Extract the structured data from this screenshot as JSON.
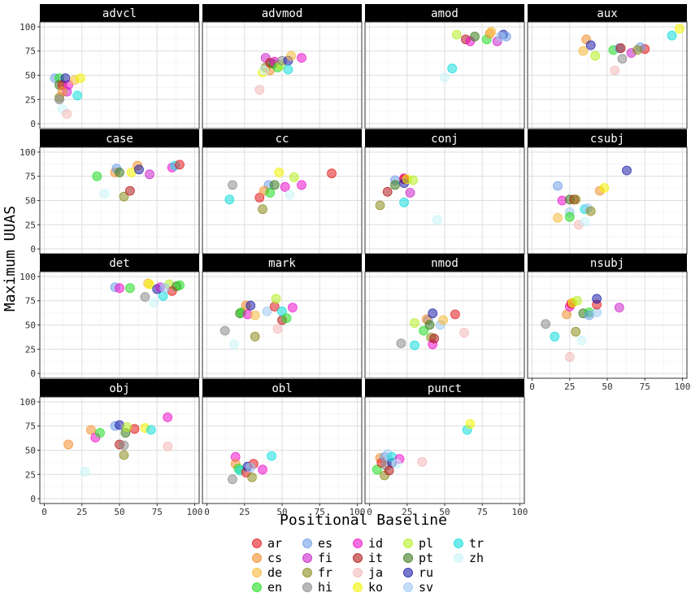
{
  "chart_data": {
    "type": "scatter",
    "xlabel": "Positional Baseline",
    "ylabel": "Maximum UUAS",
    "xlim": [
      -3,
      103
    ],
    "ylim": [
      -5,
      105
    ],
    "x_ticks": [
      0,
      25,
      50,
      75,
      100
    ],
    "y_ticks": [
      0,
      25,
      50,
      75,
      100
    ],
    "grid": true,
    "legend_position": "bottom",
    "languages": [
      {
        "code": "ar",
        "color": "#e41a1c"
      },
      {
        "code": "cs",
        "color": "#f28e2b"
      },
      {
        "code": "de",
        "color": "#f6b93b"
      },
      {
        "code": "en",
        "color": "#22dd22"
      },
      {
        "code": "es",
        "color": "#6f9fe8"
      },
      {
        "code": "fi",
        "color": "#cc22cc"
      },
      {
        "code": "fr",
        "color": "#8c8c1e"
      },
      {
        "code": "hi",
        "color": "#8a8a8a"
      },
      {
        "code": "id",
        "color": "#ee11cc"
      },
      {
        "code": "it",
        "color": "#b01818"
      },
      {
        "code": "ja",
        "color": "#f4b8b8"
      },
      {
        "code": "ko",
        "color": "#f2f200"
      },
      {
        "code": "pl",
        "color": "#b5ee22"
      },
      {
        "code": "pt",
        "color": "#3a7a1a"
      },
      {
        "code": "ru",
        "color": "#1e1eaa"
      },
      {
        "code": "sv",
        "color": "#9ec8f2"
      },
      {
        "code": "tr",
        "color": "#11dddd"
      },
      {
        "code": "zh",
        "color": "#c8f4f8"
      }
    ],
    "panels": [
      {
        "name": "advcl",
        "points": [
          [
            "es",
            7,
            47
          ],
          [
            "fr",
            10,
            27
          ],
          [
            "en",
            10,
            47
          ],
          [
            "pt",
            10,
            40
          ],
          [
            "ar",
            12,
            40
          ],
          [
            "id",
            16,
            40
          ],
          [
            "fi",
            15,
            33
          ],
          [
            "cs",
            12,
            33
          ],
          [
            "ru",
            14,
            47
          ],
          [
            "de",
            20,
            45
          ],
          [
            "ko",
            24,
            47
          ],
          [
            "tr",
            22,
            29
          ],
          [
            "zh",
            12,
            15
          ],
          [
            "ja",
            15,
            10
          ],
          [
            "hi",
            10,
            25
          ]
        ]
      },
      {
        "name": "advmod",
        "points": [
          [
            "ja",
            35,
            35
          ],
          [
            "ko",
            37,
            53
          ],
          [
            "fr",
            39,
            58
          ],
          [
            "fi",
            39,
            68
          ],
          [
            "cs",
            42,
            55
          ],
          [
            "it",
            42,
            63
          ],
          [
            "pt",
            44,
            62
          ],
          [
            "id",
            45,
            64
          ],
          [
            "en",
            47,
            58
          ],
          [
            "pl",
            49,
            60
          ],
          [
            "hi",
            50,
            65
          ],
          [
            "ru",
            54,
            65
          ],
          [
            "tr",
            54,
            56
          ],
          [
            "de",
            56,
            70
          ],
          [
            "id",
            63,
            68
          ],
          [
            "zh",
            38,
            55
          ]
        ]
      },
      {
        "name": "amod",
        "points": [
          [
            "zh",
            50,
            48
          ],
          [
            "tr",
            55,
            57
          ],
          [
            "pl",
            58,
            92
          ],
          [
            "it",
            64,
            87
          ],
          [
            "id",
            67,
            85
          ],
          [
            "pt",
            70,
            90
          ],
          [
            "en",
            78,
            87
          ],
          [
            "cs",
            80,
            93
          ],
          [
            "de",
            81,
            95
          ],
          [
            "fi",
            85,
            85
          ],
          [
            "ru",
            89,
            92
          ],
          [
            "es",
            91,
            90
          ],
          [
            "sv",
            87,
            90
          ]
        ]
      },
      {
        "name": "aux",
        "points": [
          [
            "ja",
            55,
            55
          ],
          [
            "cs",
            36,
            87
          ],
          [
            "de",
            34,
            75
          ],
          [
            "ru",
            39,
            81
          ],
          [
            "pl",
            42,
            70
          ],
          [
            "en",
            54,
            76
          ],
          [
            "es",
            58,
            78
          ],
          [
            "hi",
            60,
            67
          ],
          [
            "it",
            59,
            78
          ],
          [
            "fi",
            66,
            73
          ],
          [
            "ar",
            75,
            77
          ],
          [
            "es",
            72,
            79
          ],
          [
            "fr",
            70,
            76
          ],
          [
            "tr",
            93,
            91
          ],
          [
            "ko",
            98,
            98
          ]
        ]
      },
      {
        "name": "case",
        "points": [
          [
            "en",
            35,
            75
          ],
          [
            "zh",
            40,
            57
          ],
          [
            "cs",
            47,
            79
          ],
          [
            "es",
            48,
            83
          ],
          [
            "pt",
            50,
            79
          ],
          [
            "fr",
            53,
            54
          ],
          [
            "it",
            57,
            60
          ],
          [
            "ko",
            58,
            79
          ],
          [
            "cs",
            62,
            86
          ],
          [
            "ru",
            63,
            82
          ],
          [
            "fi",
            70,
            77
          ],
          [
            "id",
            85,
            84
          ],
          [
            "tr",
            87,
            86
          ],
          [
            "ar",
            90,
            87
          ]
        ]
      },
      {
        "name": "cc",
        "points": [
          [
            "tr",
            15,
            51
          ],
          [
            "hi",
            17,
            66
          ],
          [
            "ar",
            35,
            53
          ],
          [
            "fr",
            37,
            41
          ],
          [
            "es",
            41,
            66
          ],
          [
            "cs",
            38,
            60
          ],
          [
            "en",
            42,
            58
          ],
          [
            "pt",
            45,
            66
          ],
          [
            "ko",
            48,
            79
          ],
          [
            "id",
            52,
            64
          ],
          [
            "zh",
            55,
            56
          ],
          [
            "pl",
            58,
            74
          ],
          [
            "id",
            63,
            66
          ],
          [
            "ar",
            83,
            78
          ]
        ]
      },
      {
        "name": "conj",
        "points": [
          [
            "fr",
            7,
            45
          ],
          [
            "it",
            12,
            59
          ],
          [
            "es",
            17,
            71
          ],
          [
            "pt",
            17,
            66
          ],
          [
            "id",
            23,
            73
          ],
          [
            "ar",
            23,
            72
          ],
          [
            "ru",
            23,
            68
          ],
          [
            "ko",
            25,
            72
          ],
          [
            "tr",
            23,
            48
          ],
          [
            "fi",
            27,
            58
          ],
          [
            "pl",
            29,
            71
          ],
          [
            "zh",
            45,
            30
          ]
        ]
      },
      {
        "name": "csubj",
        "points": [
          [
            "sv",
            25,
            38
          ],
          [
            "es",
            17,
            65
          ],
          [
            "de",
            17,
            32
          ],
          [
            "id",
            20,
            50
          ],
          [
            "en",
            25,
            33
          ],
          [
            "pt",
            25,
            51
          ],
          [
            "it",
            28,
            51
          ],
          [
            "fr",
            29,
            51
          ],
          [
            "ja",
            31,
            25
          ],
          [
            "zh",
            35,
            28
          ],
          [
            "tr",
            35,
            41
          ],
          [
            "sv",
            37,
            42
          ],
          [
            "fr",
            39,
            39
          ],
          [
            "cs",
            45,
            60
          ],
          [
            "ko",
            48,
            63
          ],
          [
            "ru",
            63,
            81
          ]
        ]
      },
      {
        "name": "det",
        "points": [
          [
            "es",
            47,
            89
          ],
          [
            "id",
            50,
            88
          ],
          [
            "en",
            57,
            88
          ],
          [
            "hi",
            67,
            79
          ],
          [
            "de",
            69,
            93
          ],
          [
            "ko",
            70,
            92
          ],
          [
            "tr",
            79,
            80
          ],
          [
            "zh",
            73,
            73
          ],
          [
            "ru",
            75,
            87
          ],
          [
            "fi",
            77,
            89
          ],
          [
            "pl",
            83,
            92
          ],
          [
            "ar",
            85,
            85
          ],
          [
            "pt",
            88,
            90
          ],
          [
            "en",
            90,
            91
          ],
          [
            "sv",
            80,
            88
          ]
        ]
      },
      {
        "name": "mark",
        "points": [
          [
            "hi",
            12,
            44
          ],
          [
            "zh",
            18,
            30
          ],
          [
            "pt",
            22,
            62
          ],
          [
            "en",
            23,
            63
          ],
          [
            "cs",
            26,
            70
          ],
          [
            "id",
            27,
            61
          ],
          [
            "ru",
            29,
            70
          ],
          [
            "de",
            32,
            60
          ],
          [
            "fr",
            32,
            38
          ],
          [
            "sv",
            40,
            64
          ],
          [
            "ar",
            45,
            69
          ],
          [
            "pl",
            46,
            77
          ],
          [
            "ja",
            47,
            46
          ],
          [
            "it",
            50,
            55
          ],
          [
            "tr",
            50,
            64
          ],
          [
            "en",
            53,
            57
          ],
          [
            "id",
            57,
            68
          ]
        ]
      },
      {
        "name": "nmod",
        "points": [
          [
            "hi",
            21,
            31
          ],
          [
            "tr",
            30,
            29
          ],
          [
            "pl",
            30,
            52
          ],
          [
            "en",
            36,
            44
          ],
          [
            "es",
            39,
            55
          ],
          [
            "cs",
            38,
            56
          ],
          [
            "pt",
            40,
            50
          ],
          [
            "fr",
            41,
            37
          ],
          [
            "id",
            42,
            30
          ],
          [
            "it",
            43,
            36
          ],
          [
            "ru",
            42,
            62
          ],
          [
            "sv",
            47,
            50
          ],
          [
            "de",
            49,
            55
          ],
          [
            "ar",
            57,
            61
          ],
          [
            "ja",
            63,
            42
          ]
        ]
      },
      {
        "name": "nsubj",
        "points": [
          [
            "hi",
            9,
            51
          ],
          [
            "tr",
            15,
            38
          ],
          [
            "ja",
            25,
            17
          ],
          [
            "cs",
            23,
            61
          ],
          [
            "id",
            25,
            69
          ],
          [
            "ar",
            26,
            72
          ],
          [
            "ko",
            27,
            73
          ],
          [
            "pl",
            30,
            75
          ],
          [
            "fr",
            29,
            43
          ],
          [
            "pt",
            34,
            62
          ],
          [
            "en",
            38,
            63
          ],
          [
            "zh",
            33,
            34
          ],
          [
            "es",
            38,
            60
          ],
          [
            "sv",
            43,
            63
          ],
          [
            "ar",
            43,
            71
          ],
          [
            "ru",
            43,
            77
          ],
          [
            "fi",
            58,
            68
          ]
        ]
      },
      {
        "name": "obj",
        "points": [
          [
            "cs",
            16,
            56
          ],
          [
            "zh",
            27,
            28
          ],
          [
            "cs",
            31,
            71
          ],
          [
            "id",
            34,
            63
          ],
          [
            "en",
            37,
            68
          ],
          [
            "es",
            47,
            75
          ],
          [
            "ru",
            50,
            76
          ],
          [
            "it",
            50,
            56
          ],
          [
            "hi",
            53,
            55
          ],
          [
            "ar",
            60,
            72
          ],
          [
            "fr",
            53,
            45
          ],
          [
            "pt",
            54,
            68
          ],
          [
            "pl",
            55,
            74
          ],
          [
            "ko",
            67,
            73
          ],
          [
            "tr",
            71,
            71
          ],
          [
            "id",
            82,
            84
          ],
          [
            "ja",
            82,
            54
          ]
        ]
      },
      {
        "name": "obl",
        "points": [
          [
            "hi",
            17,
            20
          ],
          [
            "id",
            19,
            43
          ],
          [
            "cs",
            19,
            36
          ],
          [
            "en",
            21,
            31
          ],
          [
            "tr",
            22,
            29
          ],
          [
            "ar",
            26,
            27
          ],
          [
            "ru",
            27,
            33
          ],
          [
            "fr",
            30,
            22
          ],
          [
            "ar",
            31,
            36
          ],
          [
            "sv",
            29,
            32
          ],
          [
            "id",
            37,
            30
          ],
          [
            "tr",
            43,
            44
          ]
        ]
      },
      {
        "name": "punct",
        "points": [
          [
            "en",
            5,
            30
          ],
          [
            "cs",
            7,
            42
          ],
          [
            "ar",
            8,
            37
          ],
          [
            "es",
            10,
            43
          ],
          [
            "sv",
            12,
            46
          ],
          [
            "fr",
            10,
            24
          ],
          [
            "hi",
            11,
            34
          ],
          [
            "ru",
            15,
            37
          ],
          [
            "it",
            13,
            29
          ],
          [
            "tr",
            15,
            43
          ],
          [
            "id",
            20,
            41
          ],
          [
            "zh",
            18,
            36
          ],
          [
            "ja",
            35,
            38
          ],
          [
            "tr",
            65,
            71
          ],
          [
            "ko",
            67,
            77
          ]
        ]
      }
    ]
  }
}
